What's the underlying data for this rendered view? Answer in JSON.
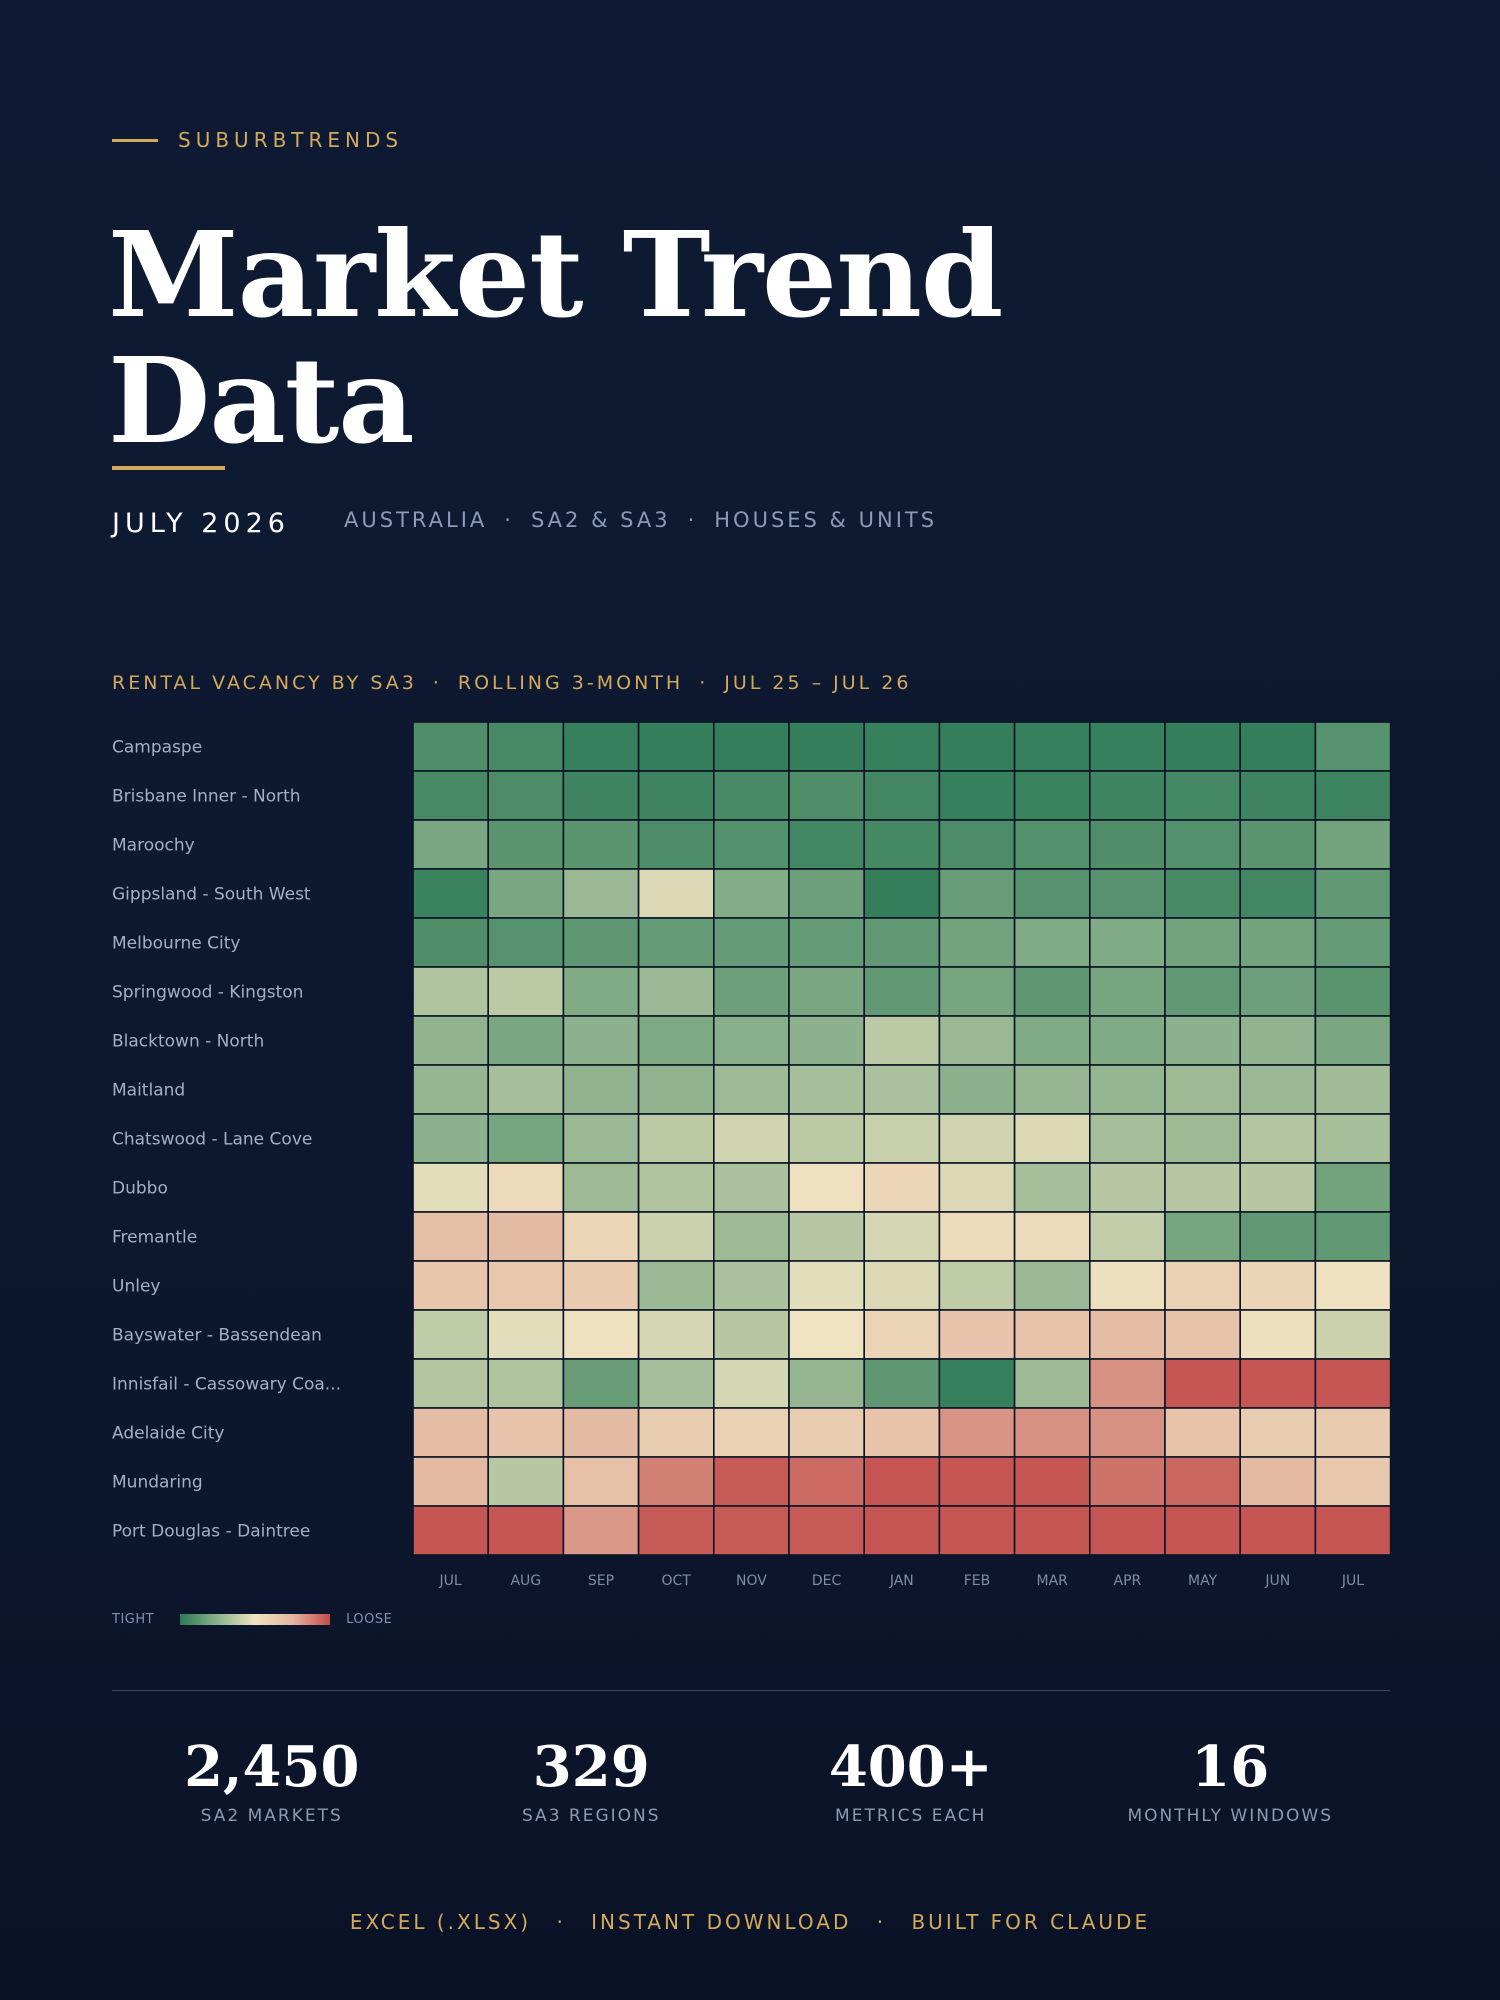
{
  "brand": "SUBURBTRENDS",
  "title_line1": "Market Trend",
  "title_line2": "Data",
  "date": "JULY 2026",
  "subtitle": [
    "AUSTRALIA",
    "SA2 & SA3",
    "HOUSES & UNITS"
  ],
  "separator": "·",
  "chart_heading": [
    "RENTAL VACANCY BY SA3",
    "ROLLING 3-MONTH",
    "JUL 25 – JUL 26"
  ],
  "legend": {
    "low": "TIGHT",
    "high": "LOOSE"
  },
  "stats": [
    {
      "value": "2,450",
      "label": "SA2 MARKETS"
    },
    {
      "value": "329",
      "label": "SA3 REGIONS"
    },
    {
      "value": "400+",
      "label": "METRICS EACH"
    },
    {
      "value": "16",
      "label": "MONTHLY WINDOWS"
    }
  ],
  "footer": [
    "EXCEL (.XLSX)",
    "INSTANT DOWNLOAD",
    "BUILT FOR CLAUDE"
  ],
  "colors": {
    "background": "#0e1a33",
    "accent": "#d4a95a",
    "tight": "#2d7a57",
    "neutral": "#efe3c1",
    "loose": "#c24e4c"
  },
  "chart_data": {
    "type": "heatmap",
    "title": "RENTAL VACANCY BY SA3 · ROLLING 3-MONTH · JUL 25 – JUL 26",
    "scale": "relative: 0 = tight, 1 = loose",
    "x": [
      "JUL",
      "AUG",
      "SEP",
      "OCT",
      "NOV",
      "DEC",
      "JAN",
      "FEB",
      "MAR",
      "APR",
      "MAY",
      "JUN",
      "JUL"
    ],
    "y": [
      "Campaspe",
      "Brisbane Inner - North",
      "Maroochy",
      "Gippsland - South West",
      "Melbourne City",
      "Springwood - Kingston",
      "Blacktown - North",
      "Maitland",
      "Chatswood - Lane Cove",
      "Dubbo",
      "Fremantle",
      "Unley",
      "Bayswater - Bassendean",
      "Innisfail - Cassowary Coa...",
      "Adelaide City",
      "Mundaring",
      "Port Douglas - Daintree"
    ],
    "values": [
      [
        0.1,
        0.08,
        0.03,
        0.02,
        0.02,
        0.02,
        0.03,
        0.02,
        0.03,
        0.03,
        0.02,
        0.02,
        0.12
      ],
      [
        0.08,
        0.09,
        0.05,
        0.05,
        0.08,
        0.1,
        0.06,
        0.03,
        0.04,
        0.05,
        0.07,
        0.05,
        0.05
      ],
      [
        0.22,
        0.13,
        0.13,
        0.09,
        0.11,
        0.06,
        0.07,
        0.09,
        0.11,
        0.1,
        0.11,
        0.13,
        0.2
      ],
      [
        0.04,
        0.22,
        0.3,
        0.45,
        0.25,
        0.18,
        0.02,
        0.17,
        0.12,
        0.12,
        0.08,
        0.06,
        0.15
      ],
      [
        0.1,
        0.12,
        0.14,
        0.16,
        0.16,
        0.16,
        0.15,
        0.2,
        0.24,
        0.24,
        0.2,
        0.2,
        0.16
      ],
      [
        0.35,
        0.38,
        0.24,
        0.3,
        0.18,
        0.22,
        0.15,
        0.21,
        0.14,
        0.21,
        0.15,
        0.18,
        0.13
      ],
      [
        0.28,
        0.22,
        0.27,
        0.23,
        0.26,
        0.27,
        0.38,
        0.3,
        0.24,
        0.24,
        0.27,
        0.28,
        0.22
      ],
      [
        0.29,
        0.33,
        0.28,
        0.28,
        0.31,
        0.33,
        0.34,
        0.27,
        0.29,
        0.29,
        0.31,
        0.3,
        0.32
      ],
      [
        0.27,
        0.21,
        0.3,
        0.38,
        0.43,
        0.38,
        0.41,
        0.43,
        0.45,
        0.33,
        0.31,
        0.36,
        0.33
      ],
      [
        0.47,
        0.55,
        0.31,
        0.35,
        0.34,
        0.51,
        0.57,
        0.45,
        0.33,
        0.37,
        0.37,
        0.37,
        0.2
      ],
      [
        0.7,
        0.72,
        0.57,
        0.42,
        0.31,
        0.37,
        0.44,
        0.55,
        0.55,
        0.4,
        0.21,
        0.15,
        0.15
      ],
      [
        0.66,
        0.65,
        0.63,
        0.3,
        0.34,
        0.47,
        0.45,
        0.39,
        0.3,
        0.52,
        0.6,
        0.58,
        0.51
      ],
      [
        0.39,
        0.47,
        0.51,
        0.44,
        0.37,
        0.5,
        0.59,
        0.67,
        0.68,
        0.71,
        0.68,
        0.52,
        0.42
      ],
      [
        0.36,
        0.35,
        0.17,
        0.33,
        0.44,
        0.29,
        0.14,
        0.03,
        0.31,
        0.84,
        0.98,
        0.98,
        0.98
      ],
      [
        0.71,
        0.67,
        0.72,
        0.62,
        0.6,
        0.62,
        0.68,
        0.83,
        0.84,
        0.84,
        0.68,
        0.62,
        0.63
      ],
      [
        0.73,
        0.37,
        0.69,
        0.88,
        0.97,
        0.93,
        0.98,
        0.98,
        0.98,
        0.91,
        0.94,
        0.73,
        0.65
      ],
      [
        0.98,
        0.98,
        0.82,
        0.97,
        0.97,
        0.97,
        0.98,
        0.98,
        0.98,
        0.98,
        0.98,
        0.98,
        0.98
      ]
    ]
  }
}
